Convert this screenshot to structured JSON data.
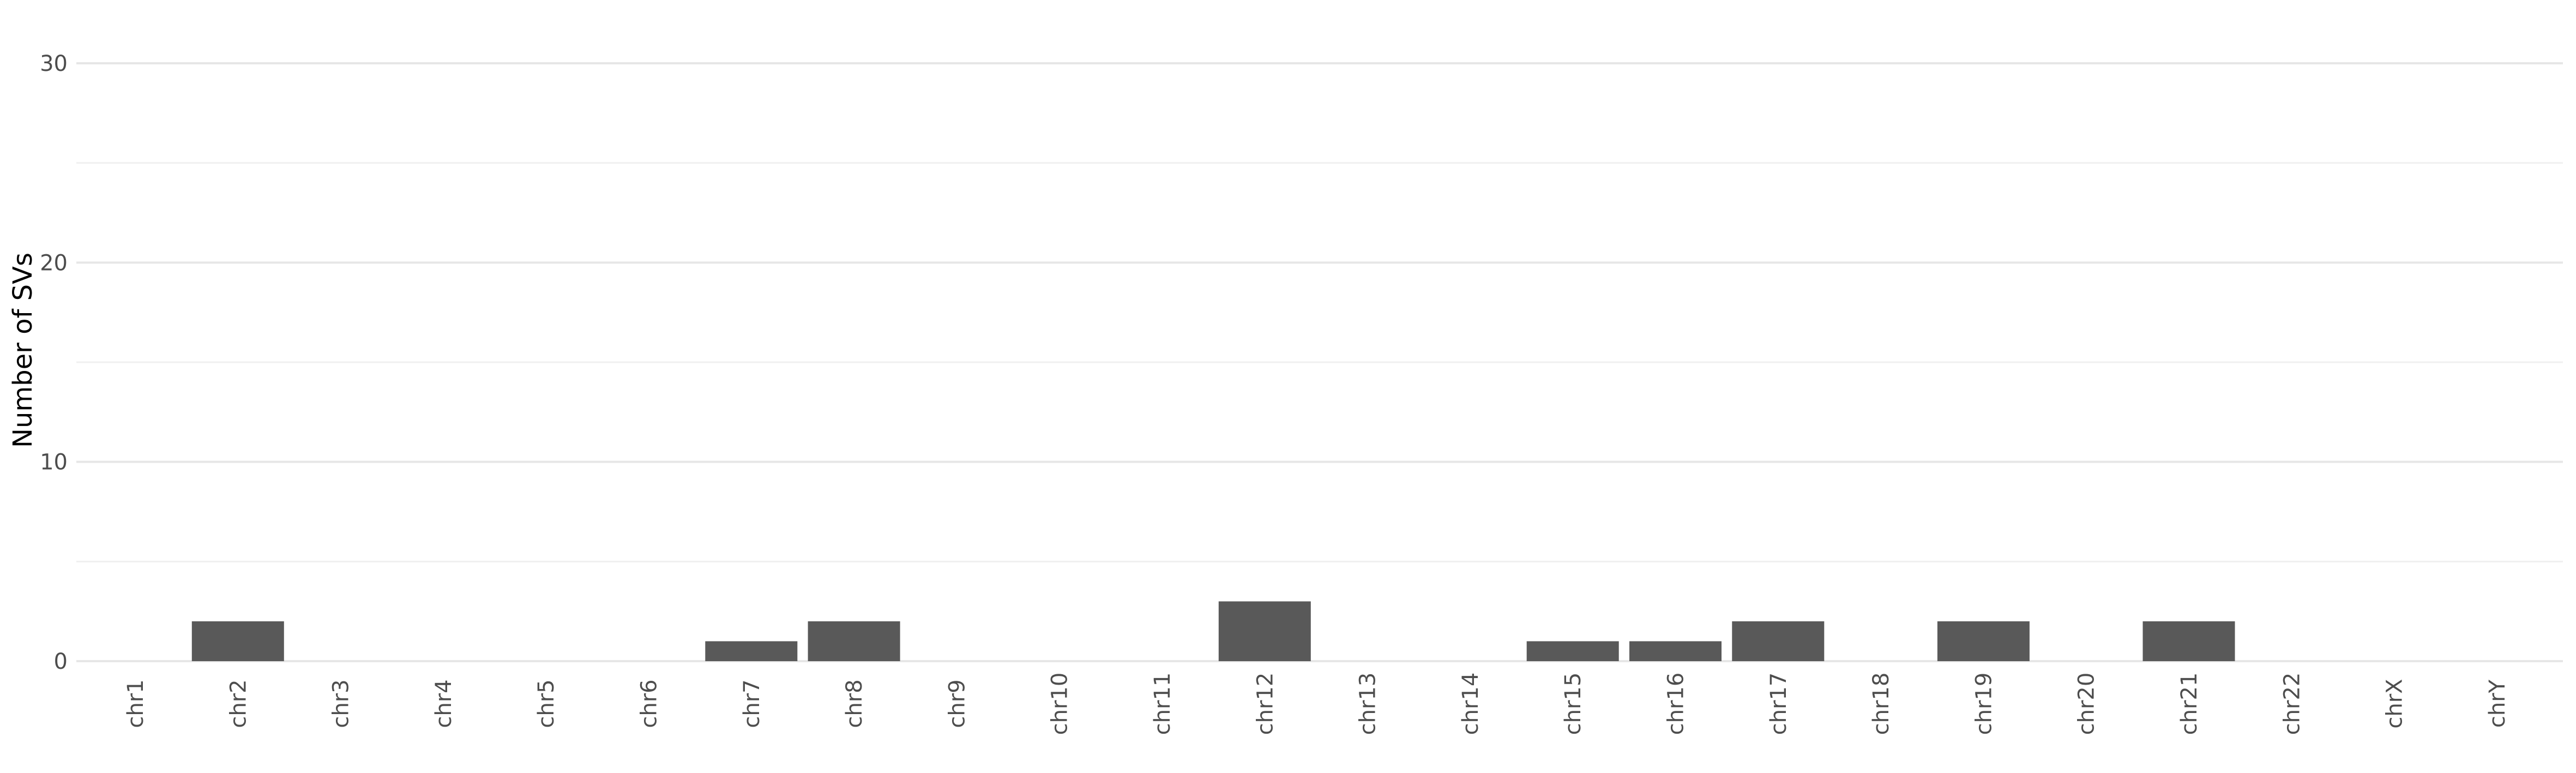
{
  "chart_data": {
    "type": "bar",
    "title": "",
    "xlabel": "",
    "ylabel": "Number of SVs",
    "categories": [
      "chr1",
      "chr2",
      "chr3",
      "chr4",
      "chr5",
      "chr6",
      "chr7",
      "chr8",
      "chr9",
      "chr10",
      "chr11",
      "chr12",
      "chr13",
      "chr14",
      "chr15",
      "chr16",
      "chr17",
      "chr18",
      "chr19",
      "chr20",
      "chr21",
      "chr22",
      "chrX",
      "chrY"
    ],
    "values": [
      0,
      2,
      0,
      0,
      0,
      0,
      1,
      2,
      0,
      0,
      0,
      3,
      0,
      0,
      1,
      1,
      2,
      0,
      2,
      0,
      2,
      0,
      0,
      0
    ],
    "ylim": [
      0,
      30
    ],
    "yticks": [
      0,
      10,
      20,
      30
    ],
    "y_minor_ticks": [
      5,
      15,
      25
    ],
    "grid": true,
    "legend": "none",
    "colors": {
      "bar": "#595959",
      "grid": "#e6e6e6",
      "text": "#4d4d4d"
    }
  }
}
